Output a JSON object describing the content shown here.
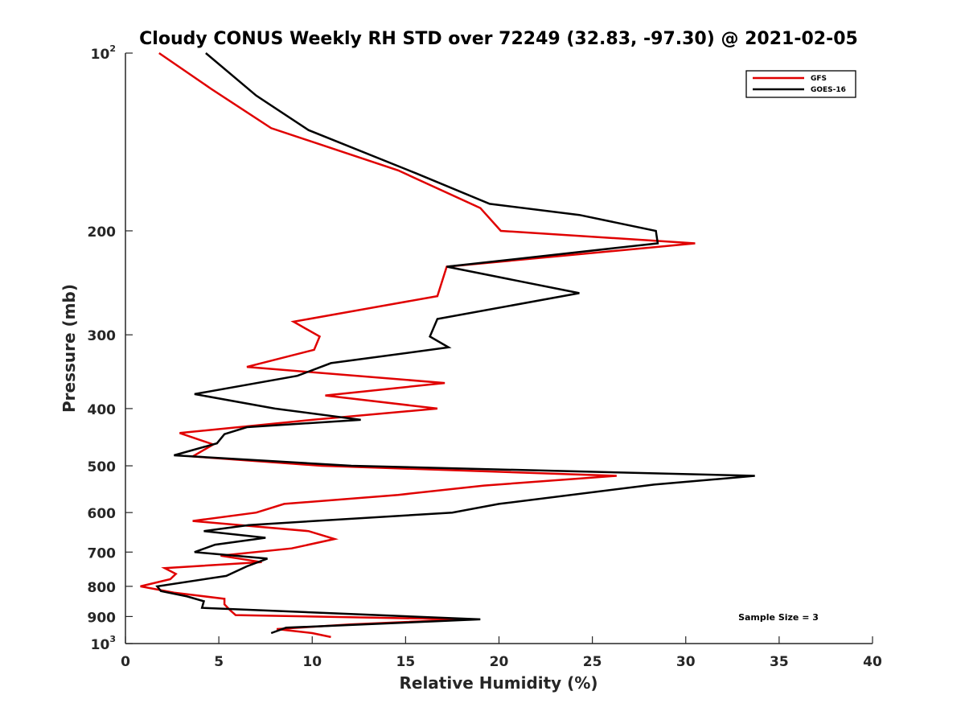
{
  "chart_data": {
    "type": "line",
    "title": "Cloudy CONUS Weekly RH STD over 72249 (32.83, -97.30) @ 2021-02-05",
    "xlabel": "Relative Humidity (%)",
    "ylabel": "Pressure (mb)",
    "xlim": [
      0,
      40
    ],
    "ylim": [
      100,
      1000
    ],
    "y_scale": "log",
    "y_reversed": true,
    "x_ticks": [
      "0",
      "5",
      "10",
      "15",
      "20",
      "25",
      "30",
      "35",
      "40"
    ],
    "y_ticks": [
      {
        "value": 100,
        "label": "10",
        "sup": "2"
      },
      {
        "value": 200,
        "label": "200",
        "sup": ""
      },
      {
        "value": 300,
        "label": "300",
        "sup": ""
      },
      {
        "value": 400,
        "label": "400",
        "sup": ""
      },
      {
        "value": 500,
        "label": "500",
        "sup": ""
      },
      {
        "value": 600,
        "label": "600",
        "sup": ""
      },
      {
        "value": 700,
        "label": "700",
        "sup": ""
      },
      {
        "value": 800,
        "label": "800",
        "sup": ""
      },
      {
        "value": 900,
        "label": "900",
        "sup": ""
      },
      {
        "value": 1000,
        "label": "10",
        "sup": "3"
      }
    ],
    "grid": false,
    "legend_position": "top-right",
    "annotation": "Sample Size = 3",
    "series": [
      {
        "name": "GFS",
        "color": "#e00000",
        "points": [
          [
            1.8,
            100
          ],
          [
            4.6,
            115
          ],
          [
            7.8,
            134
          ],
          [
            14.6,
            158
          ],
          [
            19.0,
            183
          ],
          [
            20.1,
            200
          ],
          [
            30.5,
            210
          ],
          [
            17.2,
            230
          ],
          [
            16.7,
            258
          ],
          [
            9.0,
            285
          ],
          [
            10.4,
            302
          ],
          [
            10.1,
            318
          ],
          [
            6.5,
            340
          ],
          [
            17.1,
            362
          ],
          [
            10.7,
            380
          ],
          [
            16.7,
            400
          ],
          [
            10.0,
            418
          ],
          [
            2.9,
            440
          ],
          [
            4.7,
            460
          ],
          [
            3.6,
            482
          ],
          [
            10.5,
            500
          ],
          [
            26.3,
            520
          ],
          [
            19.2,
            540
          ],
          [
            14.6,
            560
          ],
          [
            8.5,
            580
          ],
          [
            7.0,
            600
          ],
          [
            3.6,
            620
          ],
          [
            9.8,
            645
          ],
          [
            11.2,
            665
          ],
          [
            8.9,
            690
          ],
          [
            5.1,
            710
          ],
          [
            7.3,
            728
          ],
          [
            2.1,
            745
          ],
          [
            2.7,
            762
          ],
          [
            2.4,
            778
          ],
          [
            0.8,
            800
          ],
          [
            2.6,
            820
          ],
          [
            5.3,
            840
          ],
          [
            5.3,
            858
          ],
          [
            5.6,
            878
          ],
          [
            5.9,
            895
          ],
          [
            18.3,
            910
          ],
          [
            12.0,
            928
          ],
          [
            8.1,
            945
          ],
          [
            10.0,
            960
          ],
          [
            11.0,
            975
          ]
        ]
      },
      {
        "name": "GOES-16",
        "color": "#000000",
        "points": [
          [
            4.3,
            100
          ],
          [
            7.0,
            118
          ],
          [
            9.8,
            135
          ],
          [
            15.6,
            160
          ],
          [
            19.5,
            180
          ],
          [
            24.3,
            188
          ],
          [
            28.4,
            200
          ],
          [
            28.5,
            210
          ],
          [
            17.2,
            230
          ],
          [
            24.3,
            255
          ],
          [
            16.7,
            282
          ],
          [
            16.3,
            302
          ],
          [
            17.3,
            315
          ],
          [
            11.0,
            335
          ],
          [
            9.2,
            352
          ],
          [
            3.7,
            378
          ],
          [
            8.0,
            400
          ],
          [
            12.6,
            418
          ],
          [
            6.5,
            430
          ],
          [
            5.3,
            442
          ],
          [
            4.9,
            458
          ],
          [
            2.6,
            480
          ],
          [
            12.1,
            500
          ],
          [
            33.7,
            520
          ],
          [
            28.3,
            538
          ],
          [
            20.0,
            580
          ],
          [
            17.5,
            600
          ],
          [
            6.6,
            630
          ],
          [
            4.2,
            645
          ],
          [
            7.5,
            662
          ],
          [
            4.8,
            680
          ],
          [
            3.7,
            700
          ],
          [
            7.6,
            718
          ],
          [
            6.5,
            740
          ],
          [
            5.4,
            768
          ],
          [
            1.7,
            800
          ],
          [
            1.9,
            815
          ],
          [
            3.3,
            832
          ],
          [
            4.2,
            848
          ],
          [
            4.1,
            870
          ],
          [
            19.0,
            910
          ],
          [
            8.6,
            940
          ],
          [
            7.8,
            960
          ]
        ]
      }
    ]
  }
}
